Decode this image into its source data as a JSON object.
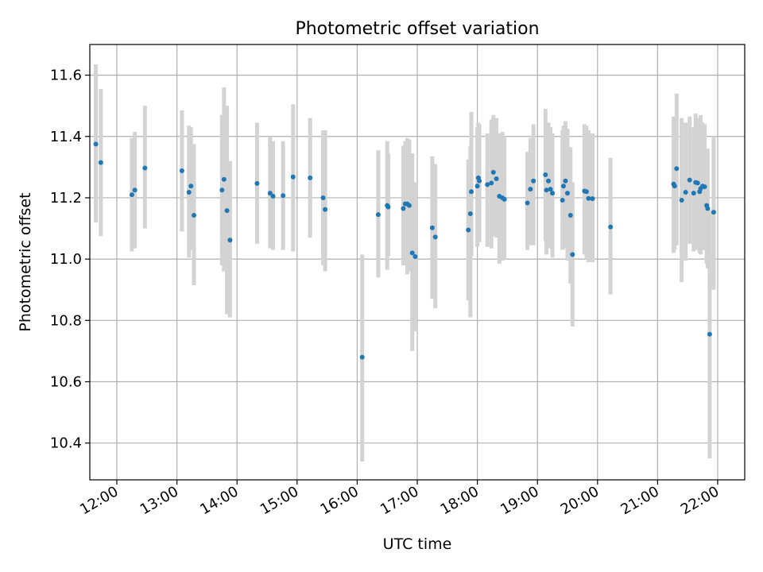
{
  "chart_data": {
    "type": "scatter",
    "title": "Photometric offset variation",
    "xlabel": "UTC time",
    "ylabel": "Photometric offset",
    "xlim": [
      "11:33",
      "22:27"
    ],
    "ylim": [
      10.28,
      11.7
    ],
    "x_ticks": [
      "12:00",
      "13:00",
      "14:00",
      "15:00",
      "16:00",
      "17:00",
      "18:00",
      "19:00",
      "20:00",
      "21:00",
      "22:00"
    ],
    "y_ticks": [
      "10.4",
      "10.6",
      "10.8",
      "11.0",
      "11.2",
      "11.4",
      "11.6"
    ],
    "grid": true,
    "colors": {
      "points": "#1f77b4",
      "errorbars": "#d3d3d3",
      "grid": "#b0b0b0"
    },
    "series": [
      {
        "x": [
          "11:39",
          "11:44",
          "12:15",
          "12:18",
          "12:28",
          "13:05",
          "13:12",
          "13:14",
          "13:17",
          "13:45",
          "13:47",
          "13:50",
          "13:53",
          "14:20",
          "14:33",
          "14:36",
          "14:46",
          "14:56",
          "15:13",
          "15:26",
          "15:28",
          "16:05",
          "16:21",
          "16:30",
          "16:31",
          "16:46",
          "16:48",
          "16:50",
          "16:52",
          "16:55",
          "16:58",
          "17:15",
          "17:18",
          "17:51",
          "17:53",
          "17:54",
          "18:00",
          "18:01",
          "18:02",
          "18:10",
          "18:14",
          "18:16",
          "18:19",
          "18:22",
          "18:25",
          "18:27",
          "18:50",
          "18:53",
          "18:56",
          "19:08",
          "19:09",
          "19:11",
          "19:13",
          "19:15",
          "19:25",
          "19:26",
          "19:28",
          "19:30",
          "19:33",
          "19:35",
          "19:47",
          "19:49",
          "19:51",
          "19:55",
          "20:13",
          "21:16",
          "21:17",
          "21:19",
          "21:24",
          "21:28",
          "21:32",
          "21:36",
          "21:38",
          "21:40",
          "21:42",
          "21:43",
          "21:45",
          "21:47",
          "21:49",
          "21:50",
          "21:52",
          "21:56"
        ],
        "y": [
          11.375,
          11.315,
          11.21,
          11.225,
          11.297,
          11.288,
          11.218,
          11.238,
          11.143,
          11.225,
          11.26,
          11.158,
          11.062,
          11.247,
          11.215,
          11.205,
          11.207,
          11.268,
          11.265,
          11.2,
          11.162,
          10.68,
          11.145,
          11.175,
          11.17,
          11.165,
          11.18,
          11.18,
          11.175,
          11.02,
          11.008,
          11.102,
          11.072,
          11.095,
          11.148,
          11.22,
          11.238,
          11.265,
          11.255,
          11.243,
          11.248,
          11.283,
          11.262,
          11.205,
          11.2,
          11.195,
          11.183,
          11.228,
          11.255,
          11.275,
          11.225,
          11.255,
          11.228,
          11.215,
          11.192,
          11.238,
          11.255,
          11.215,
          11.143,
          11.015,
          11.222,
          11.22,
          11.198,
          11.197,
          11.105,
          11.245,
          11.238,
          11.295,
          11.192,
          11.218,
          11.258,
          11.215,
          11.25,
          11.248,
          11.22,
          11.23,
          11.238,
          11.236,
          11.175,
          11.165,
          10.755,
          11.153
        ],
        "err_low": [
          11.12,
          11.075,
          11.025,
          11.035,
          11.1,
          11.09,
          11.005,
          11.03,
          10.915,
          10.98,
          10.96,
          10.82,
          10.81,
          11.05,
          11.035,
          11.03,
          11.03,
          11.025,
          11.07,
          10.98,
          10.96,
          10.34,
          10.94,
          10.965,
          11.01,
          10.98,
          10.99,
          10.95,
          10.96,
          10.7,
          10.765,
          10.87,
          10.84,
          10.865,
          10.81,
          11.01,
          11.04,
          11.09,
          11.055,
          11.04,
          11.035,
          11.075,
          11.07,
          10.985,
          10.995,
          11.0,
          11.03,
          11.045,
          11.045,
          11.06,
          11.015,
          11.05,
          11.035,
          11.005,
          11.03,
          11.04,
          11.035,
          10.995,
          10.92,
          10.78,
          11.015,
          11.0,
          10.99,
          10.99,
          10.885,
          11.02,
          11.03,
          11.045,
          10.925,
          10.995,
          11.05,
          11.025,
          11.03,
          11.03,
          11.02,
          11.015,
          11.03,
          11.03,
          10.985,
          10.97,
          10.35,
          10.9
        ],
        "err_high": [
          11.635,
          11.555,
          11.395,
          11.415,
          11.5,
          11.485,
          11.435,
          11.43,
          11.375,
          11.47,
          11.56,
          11.5,
          11.32,
          11.445,
          11.4,
          11.385,
          11.385,
          11.505,
          11.46,
          11.42,
          11.42,
          11.015,
          11.355,
          11.385,
          11.345,
          11.37,
          11.385,
          11.395,
          11.39,
          11.345,
          11.25,
          11.335,
          11.31,
          11.325,
          11.37,
          11.48,
          11.43,
          11.445,
          11.44,
          11.41,
          11.455,
          11.47,
          11.46,
          11.41,
          11.415,
          11.4,
          11.35,
          11.395,
          11.44,
          11.49,
          11.435,
          11.445,
          11.43,
          11.41,
          11.42,
          11.435,
          11.45,
          11.425,
          11.365,
          11.25,
          11.44,
          11.435,
          11.42,
          11.41,
          11.33,
          11.465,
          11.455,
          11.54,
          11.46,
          11.445,
          11.465,
          11.43,
          11.475,
          11.46,
          11.455,
          11.47,
          11.445,
          11.44,
          11.36,
          11.36,
          11.16,
          11.4
        ]
      }
    ]
  }
}
